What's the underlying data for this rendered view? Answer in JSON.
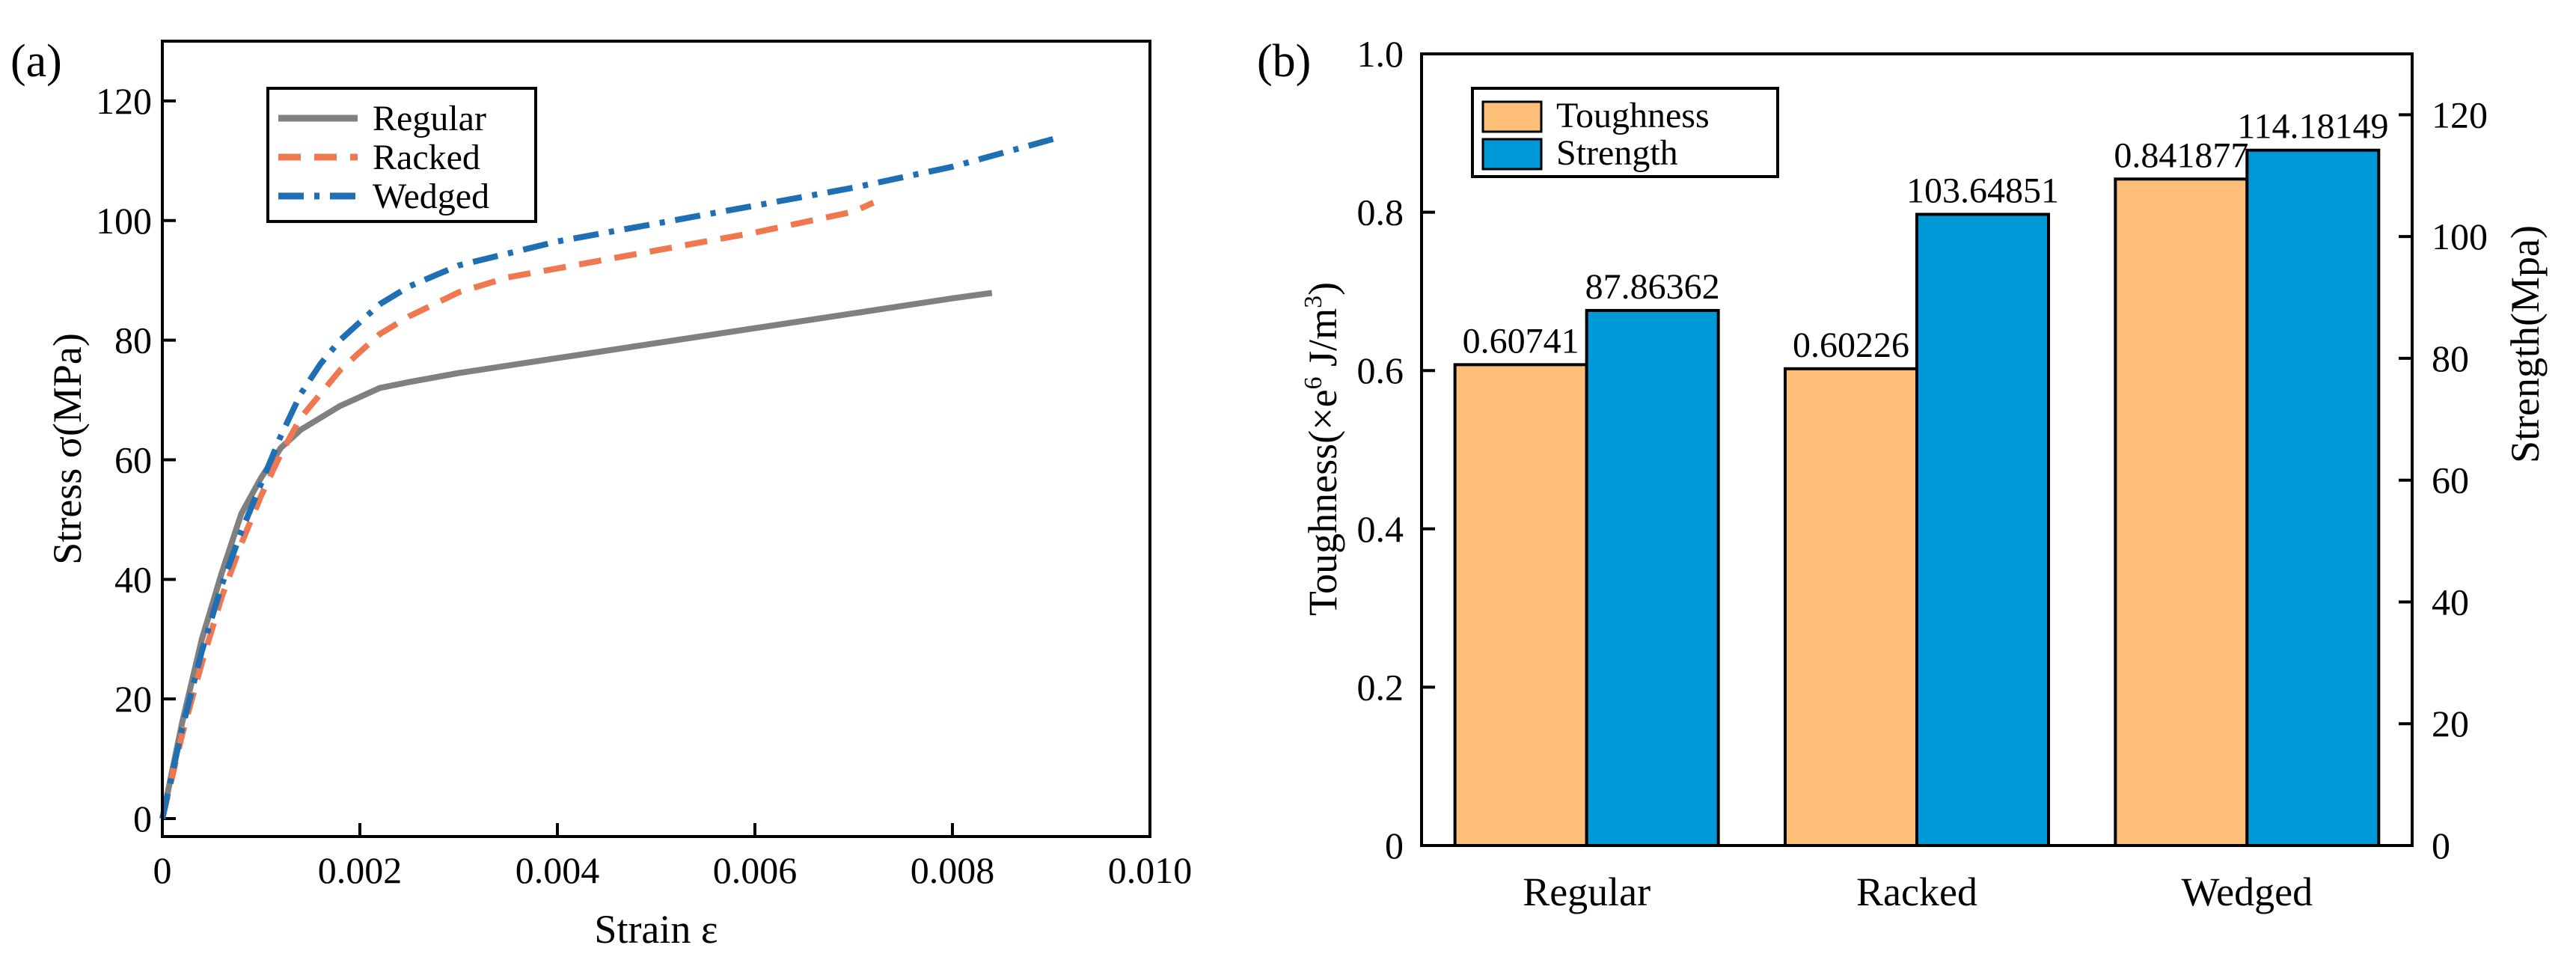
{
  "chart_data": [
    {
      "type": "line",
      "panel_label": "(a)",
      "xlabel": "Strain ε",
      "ylabel": "Stress σ(MPa)",
      "xlim": [
        0,
        0.01
      ],
      "ylim": [
        -3,
        130
      ],
      "xticks": [
        0,
        0.002,
        0.004,
        0.006,
        0.008,
        0.01
      ],
      "xtick_labels": [
        "0",
        "0.002",
        "0.004",
        "0.006",
        "0.008",
        "0.010"
      ],
      "yticks": [
        0,
        20,
        40,
        60,
        80,
        100,
        120
      ],
      "ytick_labels": [
        "0",
        "20",
        "40",
        "60",
        "80",
        "100",
        "120"
      ],
      "legend_position": "top-left",
      "series": [
        {
          "name": "Regular",
          "color": "#808080",
          "dash": "solid",
          "x": [
            0,
            0.0002,
            0.0004,
            0.0006,
            0.0008,
            0.001,
            0.0012,
            0.0014,
            0.0016,
            0.0018,
            0.002,
            0.0022,
            0.0025,
            0.003,
            0.004,
            0.005,
            0.006,
            0.007,
            0.008,
            0.0084
          ],
          "y": [
            0,
            16,
            30,
            41,
            51,
            57,
            62,
            65,
            67,
            69,
            70.5,
            72,
            73,
            74.5,
            77,
            79.5,
            82,
            84.5,
            87,
            87.9
          ]
        },
        {
          "name": "Racked",
          "color": "#F07850",
          "dash": "dashed",
          "x": [
            0,
            0.0002,
            0.0004,
            0.0006,
            0.0008,
            0.001,
            0.0012,
            0.0014,
            0.0016,
            0.0018,
            0.002,
            0.0022,
            0.0025,
            0.003,
            0.0035,
            0.004,
            0.005,
            0.006,
            0.007,
            0.0072
          ],
          "y": [
            0,
            14,
            26,
            37,
            46,
            54,
            61,
            67,
            71,
            75,
            78,
            81,
            84,
            88,
            90.5,
            92,
            95,
            98,
            101.5,
            103
          ]
        },
        {
          "name": "Wedged",
          "color": "#1F6FB5",
          "dash": "dashdot",
          "x": [
            0,
            0.0002,
            0.0004,
            0.0006,
            0.0008,
            0.001,
            0.0012,
            0.0014,
            0.0016,
            0.0018,
            0.002,
            0.0022,
            0.0025,
            0.003,
            0.0035,
            0.004,
            0.005,
            0.006,
            0.007,
            0.008,
            0.0091
          ],
          "y": [
            0,
            15,
            28,
            39,
            48,
            56,
            64,
            71,
            76,
            80,
            83,
            86,
            89,
            92.5,
            94.5,
            96.5,
            99.5,
            102.5,
            105.5,
            109,
            114
          ]
        }
      ]
    },
    {
      "type": "bar",
      "panel_label": "(b)",
      "categories": [
        "Regular",
        "Racked",
        "Wedged"
      ],
      "ylabel_left": "Toughness(×e6 J/m3)",
      "ylabel_left_parts": [
        "Toughness(×e",
        "6",
        "  J/m",
        "3",
        ")"
      ],
      "ylabel_right": "Strength(Mpa)",
      "ylim_left": [
        0,
        1.0
      ],
      "ylim_right": [
        0,
        130
      ],
      "yticks_left": [
        0,
        0.2,
        0.4,
        0.6,
        0.8,
        1.0
      ],
      "ytick_labels_left": [
        "0",
        "0.2",
        "0.4",
        "0.6",
        "0.8",
        "1.0"
      ],
      "yticks_right": [
        0,
        20,
        40,
        60,
        80,
        100,
        120
      ],
      "ytick_labels_right": [
        "0",
        "20",
        "40",
        "60",
        "80",
        "100",
        "120"
      ],
      "legend_position": "top-left",
      "series": [
        {
          "name": "Toughness",
          "axis": "left",
          "color": "#FDBF78",
          "values": [
            0.60741,
            0.60226,
            0.841877
          ],
          "labels": [
            "0.60741",
            "0.60226",
            "0.841877"
          ]
        },
        {
          "name": "Strength",
          "axis": "right",
          "color": "#0099D8",
          "values": [
            87.86362,
            103.64851,
            114.18149
          ],
          "labels": [
            "87.86362",
            "103.64851",
            "114.18149"
          ]
        }
      ]
    }
  ]
}
